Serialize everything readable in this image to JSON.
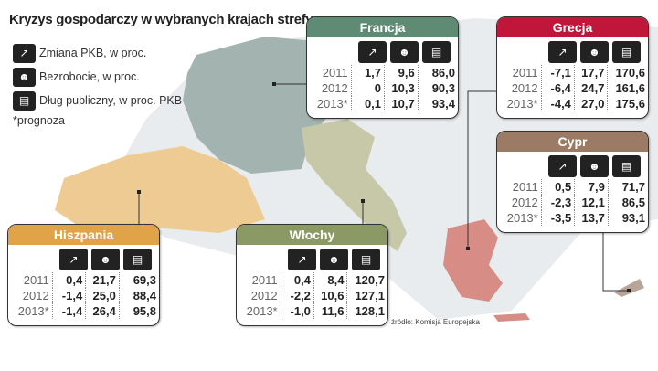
{
  "chart_data": {
    "type": "table",
    "title": "Kryzys gospodarczy w wybranych krajach strefy euro",
    "legend": [
      "Zmiana PKB, w proc.",
      "Bezrobocie, w proc.",
      "Dług publiczny, w proc. PKB"
    ],
    "note": "*prognoza",
    "source": "źródło: Komisja Europejska",
    "years": [
      "2011",
      "2012",
      "2013*"
    ],
    "countries": [
      {
        "name": "Francja",
        "color": "#5f8a74",
        "rows": [
          [
            "1,7",
            "9,6",
            "86,0"
          ],
          [
            "0",
            "10,3",
            "90,3"
          ],
          [
            "0,1",
            "10,7",
            "93,4"
          ]
        ]
      },
      {
        "name": "Grecja",
        "color": "#c0163a",
        "rows": [
          [
            "-7,1",
            "17,7",
            "170,6"
          ],
          [
            "-6,4",
            "24,7",
            "161,6"
          ],
          [
            "-4,4",
            "27,0",
            "175,6"
          ]
        ]
      },
      {
        "name": "Cypr",
        "color": "#9b7b66",
        "rows": [
          [
            "0,5",
            "7,9",
            "71,7"
          ],
          [
            "-2,3",
            "12,1",
            "86,5"
          ],
          [
            "-3,5",
            "13,7",
            "93,1"
          ]
        ]
      },
      {
        "name": "Hiszpania",
        "color": "#e0a347",
        "rows": [
          [
            "0,4",
            "21,7",
            "69,3"
          ],
          [
            "-1,4",
            "25,0",
            "88,4"
          ],
          [
            "-1,4",
            "26,4",
            "95,8"
          ]
        ]
      },
      {
        "name": "Włochy",
        "color": "#8b9a64",
        "rows": [
          [
            "0,4",
            "8,4",
            "120,7"
          ],
          [
            "-2,2",
            "10,6",
            "127,1"
          ],
          [
            "-1,0",
            "11,6",
            "128,1"
          ]
        ]
      }
    ]
  },
  "icons": [
    "chart-icon",
    "people-icon",
    "money-icon"
  ]
}
